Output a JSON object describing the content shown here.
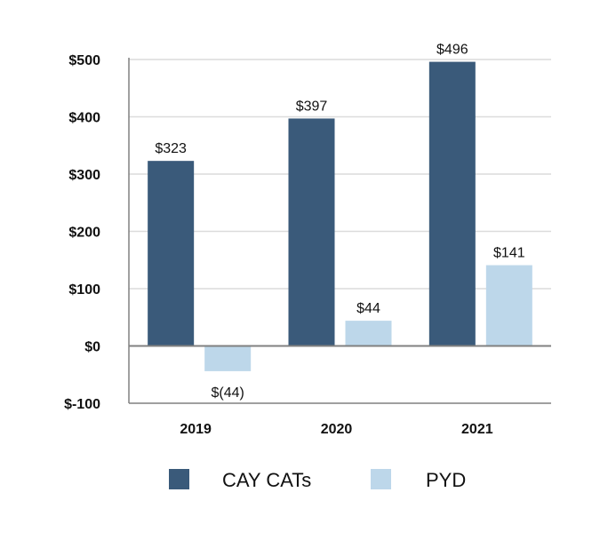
{
  "chart_data": {
    "type": "bar",
    "categories": [
      "2019",
      "2020",
      "2021"
    ],
    "series": [
      {
        "name": "CAY CATs",
        "color": "#3a5a7a",
        "values": [
          323,
          397,
          496
        ],
        "labels": [
          "$323",
          "$397",
          "$496"
        ]
      },
      {
        "name": "PYD",
        "color": "#bdd7ea",
        "values": [
          -44,
          44,
          141
        ],
        "labels": [
          "$(44)",
          "$44",
          "$141"
        ]
      }
    ],
    "ylim": [
      -100,
      500
    ],
    "yticks": [
      -100,
      0,
      100,
      200,
      300,
      400,
      500
    ],
    "ytick_labels": [
      "$-100",
      "$0",
      "$100",
      "$200",
      "$300",
      "$400",
      "$500"
    ],
    "grid": true,
    "legend": "bottom"
  }
}
